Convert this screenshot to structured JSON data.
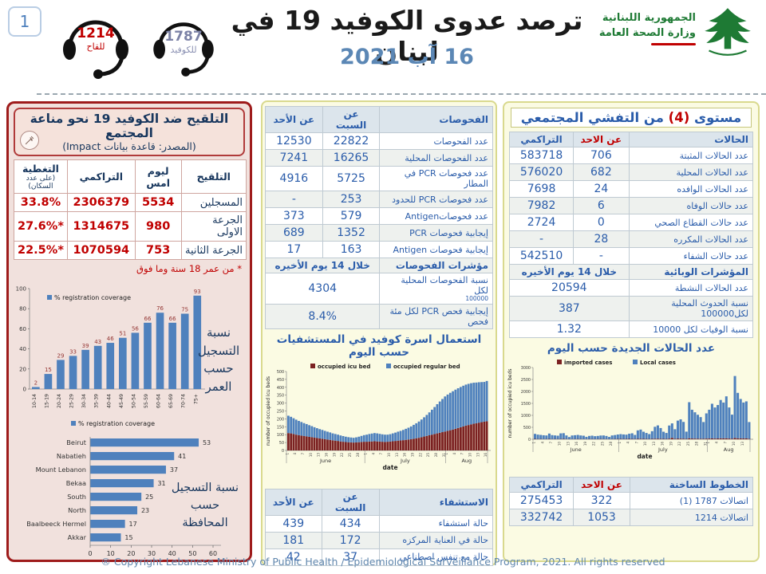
{
  "page_number": "1",
  "header": {
    "title": "ترصد عدوى الكوفيد 19 في لبنان",
    "date": "16 آب 2021",
    "hotline_vaccine": {
      "number": "1214",
      "label": "للقاح"
    },
    "hotline_covid": {
      "number": "1787",
      "label": "للكوفيد"
    },
    "ministry_line1": "الجمهورية اللبنانية",
    "ministry_line2": "وزارة الصحة العامة"
  },
  "colors": {
    "bar_blue": "#4f81bd",
    "bar_darkred": "#7b2121",
    "accent_red": "#c00000",
    "table_blue": "#2a5caa",
    "panel_left_border": "#9e1b1b",
    "panel_yellow": "#fbfbe3"
  },
  "vaccination": {
    "title": "التلقيح ضد الكوفيد 19  نحو مناعة المجتمع",
    "subtitle": "(المصدر: قاعدة بيانات Impact)",
    "headers": {
      "col0": "التلقيح",
      "col1": "ليوم امس",
      "col2": "التراكمي",
      "col3": "التغطية",
      "col3_sub": "(على عدد السكان)"
    },
    "rows": [
      {
        "label": "المسجلين",
        "yesterday": "5534",
        "cumulative": "2306379",
        "coverage": "33.8%"
      },
      {
        "label": "الجرعة الاولى",
        "yesterday": "980",
        "cumulative": "1314675",
        "coverage": "*27.6%"
      },
      {
        "label": "الجرعة الثانية",
        "yesterday": "753",
        "cumulative": "1070594",
        "coverage": "*22.5%"
      }
    ],
    "footnote": "* من عمر 18 سنة وما فوق",
    "age_chart_label": "نسبة التسجيل حسب العمر",
    "gov_chart_label": "نسبة التسجيل حسب المحافظة"
  },
  "tests_table": {
    "headers": {
      "name": "الفحوصات",
      "sat": "عن السبت",
      "sun": "عن الأحد"
    },
    "rows": [
      {
        "label": "عدد الفحوصات",
        "sat": "22822",
        "sun": "12530"
      },
      {
        "label": "عدد الفحوصات المحلية",
        "sat": "16265",
        "sun": "7241"
      },
      {
        "label": "عدد فحوصات PCR في المطار",
        "sat": "5725",
        "sun": "4916"
      },
      {
        "label": "عدد فحوصات PCR للحدود",
        "sat": "253",
        "sun": "-"
      },
      {
        "label": "عدد فحوصاتAntigen",
        "sat": "579",
        "sun": "373"
      },
      {
        "label": "إيجابية فحوصات  PCR",
        "sat": "1352",
        "sun": "689"
      },
      {
        "label": "إيجابية فحوصات  Antigen",
        "sat": "163",
        "sun": "17"
      }
    ],
    "section": {
      "label": "مؤشرات الفحوصات",
      "value": "خلال 14 يوم الأخيره"
    },
    "indicator_rows": [
      {
        "label": "نسبة الفحوصات  المحلية لكل",
        "sub": "100000",
        "value": "4304"
      },
      {
        "label": "إيجابية فحص PCR لكل مئة فحص",
        "sub": "",
        "value": "8.4%"
      }
    ]
  },
  "beds_chart_title": "استعمال اسرة كوفيد في المستشفيات حسب اليوم",
  "hospital_table": {
    "headers": {
      "name": "الاستشفاء",
      "sat": "عن السبت",
      "sun": "عن الأحد"
    },
    "rows": [
      {
        "label": "حالة استشفاء",
        "sat": "434",
        "sun": "439"
      },
      {
        "label": "حالة في العناية المركزه",
        "sat": "172",
        "sun": "181"
      },
      {
        "label": "حالة مع تنفس اصطناعي",
        "sat": "37",
        "sun": "42"
      }
    ]
  },
  "level_title": {
    "pre": "مستوى",
    "num": "(4)",
    "post": "من التفشي المجتمعي"
  },
  "cases_table": {
    "headers": {
      "name": "الحالات",
      "sun": "عن الاحد",
      "cum": "التراكمي"
    },
    "rows": [
      {
        "label": "عدد الحالات المثبتة",
        "sun": "706",
        "cum": "583718"
      },
      {
        "label": "عدد الحالات المحلية",
        "sun": "682",
        "cum": "576020"
      },
      {
        "label": "عدد الحالات الوافده",
        "sun": "24",
        "cum": "7698"
      },
      {
        "label": "عدد حالات الوفاه",
        "sun": "6",
        "cum": "7982"
      },
      {
        "label": "عدد حالات القطاع الصحي",
        "sun": "0",
        "cum": "2724"
      },
      {
        "label": "عدد الحالات المكرره",
        "sun": "28",
        "cum": "-"
      },
      {
        "label": "عدد حالات الشفاء",
        "sun": "-",
        "cum": "542510"
      }
    ],
    "section": {
      "label": "المؤشرات الوبائية",
      "value": "خلال 14 يوم الأخيره"
    },
    "indicator_rows": [
      {
        "label": "عدد الحالات النشطة",
        "value": "20594"
      },
      {
        "label": "نسبة الحدوث المحلية لكل100000",
        "value": "387"
      },
      {
        "label": "نسبة الوفيات لكل 10000",
        "value": "1.32"
      }
    ]
  },
  "newcases_chart_title": "عدد الحالات الجديدة حسب اليوم",
  "hotlines_table": {
    "headers": {
      "name": "الخطوط الساخنة",
      "sun": "عن الاحد",
      "cum": "التراكمي"
    },
    "rows": [
      {
        "label": "اتصالات 1787 (1)",
        "sun": "322",
        "cum": "275453"
      },
      {
        "label": "اتصالات 1214",
        "sun": "1053",
        "cum": "332742"
      }
    ]
  },
  "footer": "® Copyright Lebanese Ministry of Public Health / Epidemiological Surveillance Program, 2021. All rights reserved",
  "chart_data": [
    {
      "id": "age",
      "type": "bar",
      "title": "% registration coverage by age",
      "legend": [
        "% registration coverage"
      ],
      "categories": [
        "10-14",
        "15-19",
        "20-24",
        "25-29",
        "30-34",
        "35-39",
        "40-44",
        "45-49",
        "50-54",
        "55-59",
        "60-64",
        "65-69",
        "70-74",
        "75+"
      ],
      "values": [
        2,
        15,
        29,
        33,
        39,
        43,
        46,
        51,
        56,
        66,
        76,
        66,
        75,
        93
      ],
      "ylim": [
        0,
        100
      ],
      "ytick_step": 20,
      "grid": false,
      "legend_position": "top-left"
    },
    {
      "id": "governorate",
      "type": "bar",
      "title": "% registration coverage by governorate",
      "legend": [
        "% registration coverage"
      ],
      "categories": [
        "Beirut",
        "Nabatieh",
        "Mount Lebanon",
        "Bekaa",
        "South",
        "North",
        "Baalbeeck Hermel",
        "Akkar"
      ],
      "values": [
        53,
        41,
        37,
        31,
        25,
        23,
        17,
        15
      ],
      "orientation": "horizontal",
      "xlim": [
        0,
        60
      ],
      "xtick_step": 10,
      "grid": false,
      "legend_position": "top"
    },
    {
      "id": "beds",
      "type": "bar",
      "stacked": true,
      "title": "استعمال اسرة كوفيد في المستشفيات حسب اليوم",
      "xlabel": "date",
      "ylabel": "number of occupied icu beds",
      "ylim": [
        0,
        500
      ],
      "ytick_step": 50,
      "months": [
        {
          "name": "June",
          "days": 30
        },
        {
          "name": "July",
          "days": 31
        },
        {
          "name": "Aug",
          "days": 16
        }
      ],
      "series": [
        {
          "name": "occupied icu bed",
          "color": "#7b2121",
          "values": [
            110,
            108,
            104,
            100,
            97,
            94,
            91,
            89,
            86,
            84,
            81,
            79,
            76,
            74,
            71,
            69,
            67,
            64,
            62,
            60,
            57,
            55,
            53,
            52,
            51,
            50,
            51,
            52,
            54,
            55,
            55,
            56,
            57,
            58,
            57,
            56,
            55,
            54,
            55,
            56,
            58,
            60,
            62,
            63,
            65,
            67,
            69,
            71,
            74,
            77,
            80,
            84,
            88,
            92,
            96,
            100,
            104,
            108,
            112,
            116,
            120,
            124,
            128,
            132,
            137,
            142,
            147,
            152,
            157,
            161,
            165,
            169,
            172,
            176,
            179,
            182,
            185
          ]
        },
        {
          "name": "occupied regular bed",
          "color": "#4f81bd",
          "values": [
            110,
            105,
            100,
            95,
            90,
            86,
            82,
            78,
            74,
            70,
            66,
            62,
            59,
            56,
            53,
            50,
            47,
            44,
            42,
            40,
            38,
            36,
            34,
            32,
            31,
            30,
            32,
            35,
            38,
            42,
            45,
            48,
            50,
            52,
            51,
            49,
            47,
            46,
            45,
            47,
            50,
            53,
            57,
            61,
            65,
            70,
            75,
            81,
            88,
            95,
            103,
            112,
            122,
            133,
            145,
            158,
            171,
            185,
            198,
            210,
            222,
            230,
            237,
            243,
            248,
            252,
            255,
            258,
            260,
            261,
            261,
            260,
            258,
            256,
            254,
            252,
            255
          ]
        }
      ]
    },
    {
      "id": "newcases",
      "type": "bar",
      "stacked": true,
      "title": "عدد الحالات الجديدة حسب اليوم",
      "xlabel": "date",
      "ylabel": "number of occupied icu beds",
      "ylim": [
        0,
        3000
      ],
      "ytick_step": 500,
      "months": [
        {
          "name": "June",
          "days": 30
        },
        {
          "name": "July",
          "days": 31
        },
        {
          "name": "Aug",
          "days": 15
        }
      ],
      "series": [
        {
          "name": "imported cases",
          "color": "#7b2121",
          "values": [
            15,
            10,
            12,
            8,
            10,
            14,
            9,
            11,
            10,
            12,
            15,
            10,
            8,
            9,
            10,
            12,
            10,
            9,
            8,
            10,
            11,
            9,
            10,
            12,
            10,
            9,
            8,
            10,
            12,
            14,
            15,
            12,
            14,
            16,
            15,
            12,
            18,
            20,
            16,
            14,
            12,
            18,
            22,
            25,
            20,
            16,
            14,
            25,
            60,
            20,
            30,
            28,
            25,
            15,
            40,
            30,
            28,
            25,
            22,
            20,
            28,
            30,
            35,
            30,
            32,
            38,
            35,
            40,
            30,
            25,
            50,
            40,
            35,
            32,
            35,
            20
          ]
        },
        {
          "name": "Local cases",
          "color": "#4f81bd",
          "values": [
            210,
            185,
            170,
            160,
            150,
            225,
            165,
            150,
            140,
            235,
            240,
            150,
            85,
            150,
            160,
            170,
            150,
            140,
            95,
            130,
            140,
            120,
            130,
            145,
            150,
            130,
            90,
            150,
            165,
            185,
            200,
            190,
            180,
            215,
            235,
            170,
            355,
            385,
            300,
            250,
            205,
            320,
            500,
            555,
            450,
            300,
            250,
            550,
            605,
            400,
            750,
            805,
            700,
            305,
            1510,
            1205,
            1100,
            1000,
            905,
            700,
            1055,
            1205,
            1450,
            1300,
            1400,
            1605,
            1500,
            1755,
            1300,
            1005,
            2595,
            1900,
            1650,
            1505,
            1550,
            700
          ]
        }
      ]
    }
  ]
}
